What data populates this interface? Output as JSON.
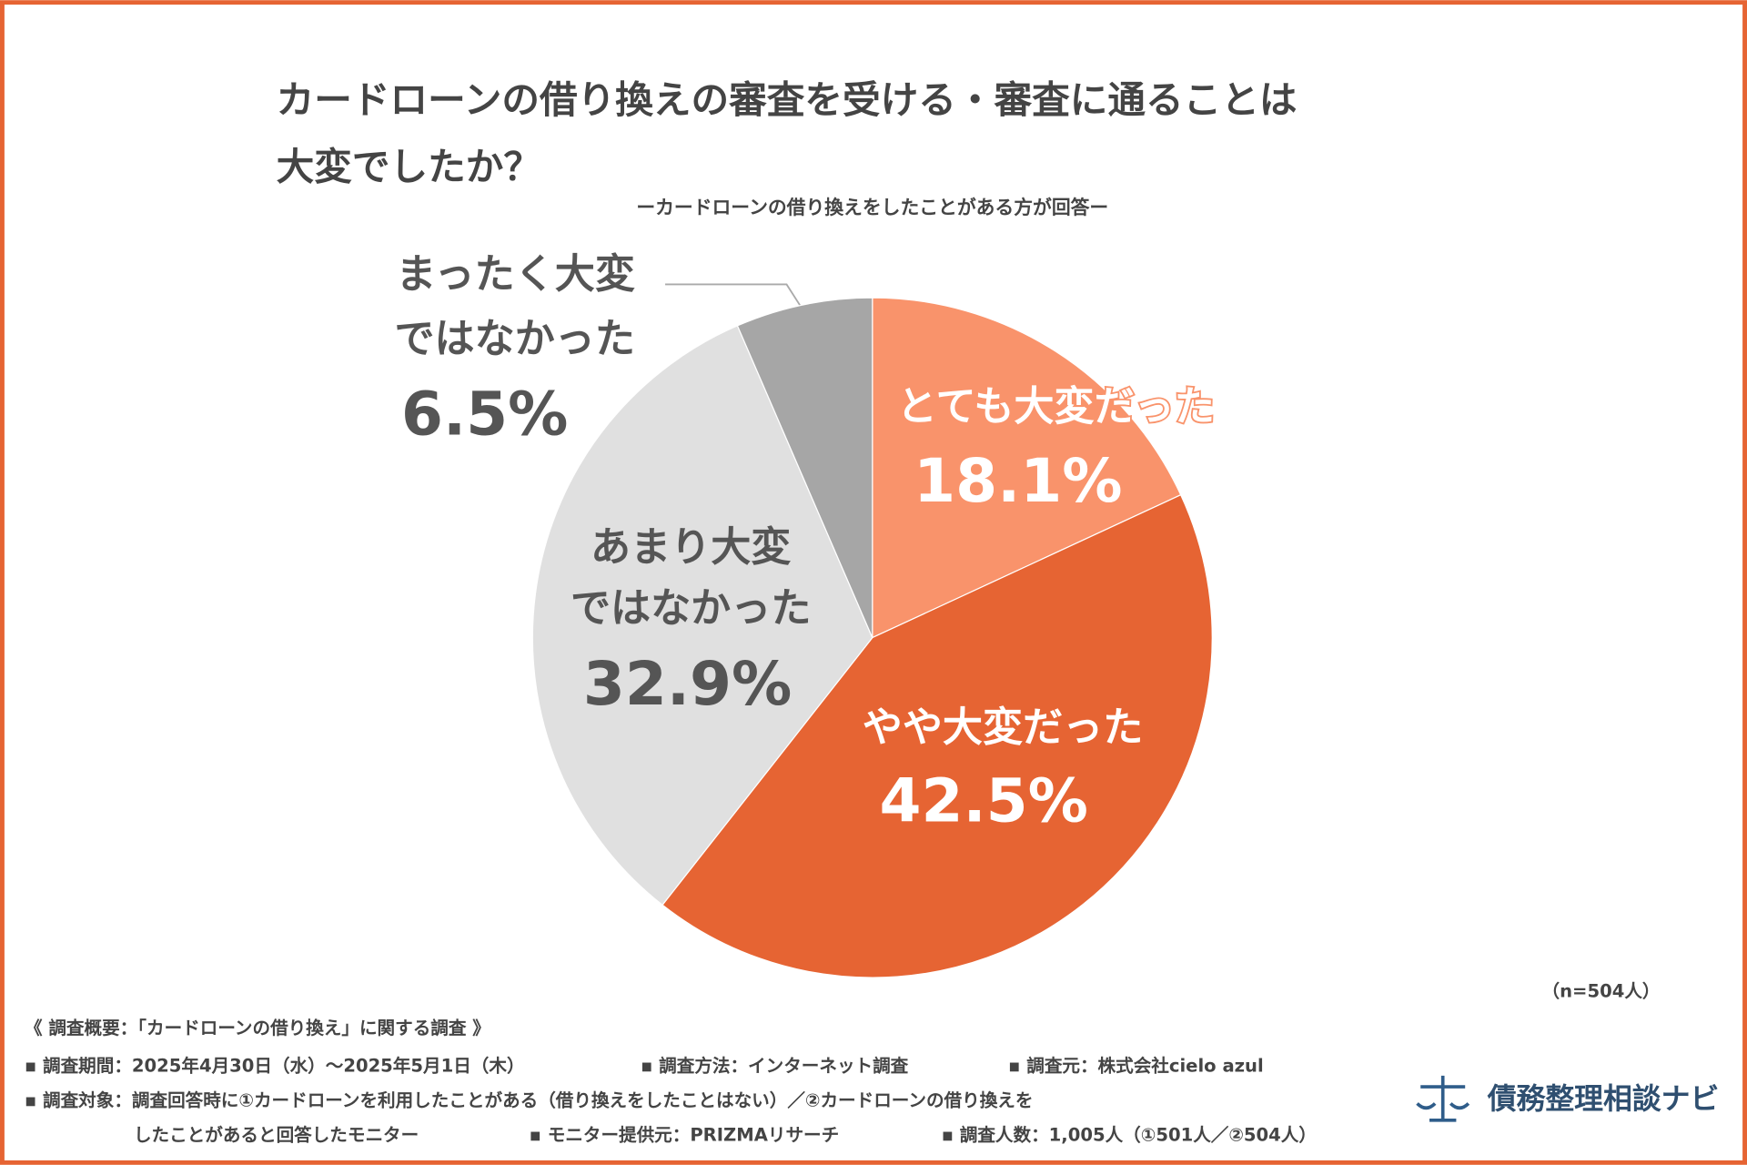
{
  "chart_data": {
    "type": "pie",
    "title": [
      "カードローンの借り換えの審査を受ける・審査に通ることは",
      "大変でしたか？"
    ],
    "subtitle": "ーカードローンの借り換えをしたことがある方が回答ー",
    "categories": [
      [
        "とても大変だった"
      ],
      [
        "やや大変だった"
      ],
      [
        "あまり大変",
        "ではなかった"
      ],
      [
        "まったく大変",
        "ではなかった"
      ]
    ],
    "values": [
      18.1,
      42.5,
      32.9,
      6.5
    ],
    "value_labels": [
      "18.1%",
      "42.5%",
      "32.9%",
      "6.5%"
    ],
    "colors": [
      "#f9936b",
      "#e66433",
      "#e0e0e0",
      "#a6a6a6"
    ],
    "sample_note": "（n=504人）"
  },
  "footer": {
    "heading": "《 調査概要：「カードローンの借り換え」に関する調査 》",
    "lines": [
      [
        "▪ 調査期間：2025年4月30日（水）〜2025年5月1日（木）",
        "▪ 調査方法：インターネット調査",
        "▪ 調査元：株式会社cielo azul"
      ],
      [
        "▪ 調査対象：調査回答時に①カードローンを利用したことがある（借り換えをしたことはない）／②カードローンの借り換えを"
      ],
      [
        "したことがあると回答したモニター",
        "▪ モニター提供元：PRIZMAリサーチ",
        "▪ 調査人数：1,005人（①501人／②504人）"
      ]
    ],
    "logo": "債務整理相談ナビ"
  }
}
